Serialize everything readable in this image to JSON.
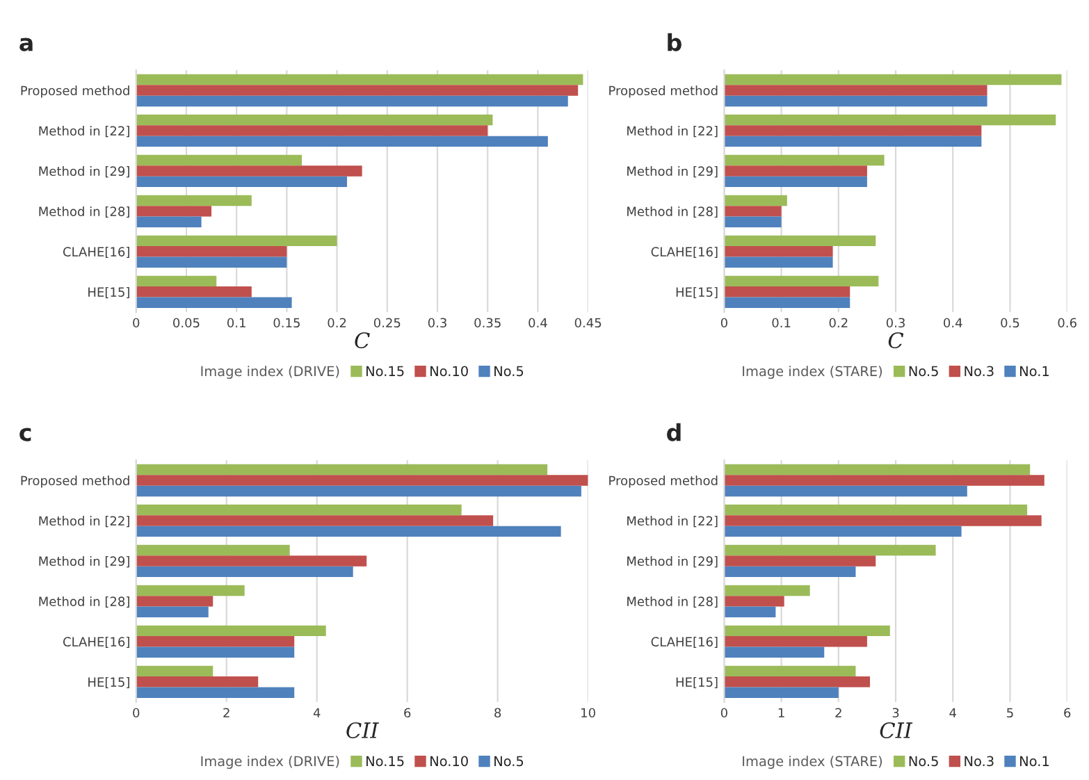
{
  "chart_data": [
    {
      "type": "bar",
      "orientation": "horizontal",
      "title": "a",
      "xlabel": "C",
      "legend_title": "Image index (DRIVE)",
      "legend": "bottom",
      "grid": "x",
      "categories": [
        "Proposed method",
        "Method in [22]",
        "Method in [29]",
        "Method in [28]",
        "CLAHE[16]",
        "HE[15]"
      ],
      "xlim": [
        0,
        0.45
      ],
      "xticks": [
        0,
        0.05,
        0.1,
        0.15,
        0.2,
        0.25,
        0.3,
        0.35,
        0.4,
        0.45
      ],
      "series": [
        {
          "name": "No.15",
          "color": "#9bbb59",
          "values": [
            0.445,
            0.355,
            0.165,
            0.115,
            0.2,
            0.08
          ]
        },
        {
          "name": "No.10",
          "color": "#c0504d",
          "values": [
            0.44,
            0.35,
            0.225,
            0.075,
            0.15,
            0.115
          ]
        },
        {
          "name": "No.5",
          "color": "#4f81bd",
          "values": [
            0.43,
            0.41,
            0.21,
            0.065,
            0.15,
            0.155
          ]
        }
      ]
    },
    {
      "type": "bar",
      "orientation": "horizontal",
      "title": "b",
      "xlabel": "C",
      "legend_title": "Image index (STARE)",
      "legend": "bottom",
      "grid": "x",
      "categories": [
        "Proposed method",
        "Method in [22]",
        "Method in [29]",
        "Method in [28]",
        "CLAHE[16]",
        "HE[15]"
      ],
      "xlim": [
        0,
        0.6
      ],
      "xticks": [
        0,
        0.1,
        0.2,
        0.3,
        0.4,
        0.5,
        0.6
      ],
      "series": [
        {
          "name": "No.5",
          "color": "#9bbb59",
          "values": [
            0.59,
            0.58,
            0.28,
            0.11,
            0.265,
            0.27
          ]
        },
        {
          "name": "No.3",
          "color": "#c0504d",
          "values": [
            0.46,
            0.45,
            0.25,
            0.1,
            0.19,
            0.22
          ]
        },
        {
          "name": "No.1",
          "color": "#4f81bd",
          "values": [
            0.46,
            0.45,
            0.25,
            0.1,
            0.19,
            0.22
          ]
        }
      ]
    },
    {
      "type": "bar",
      "orientation": "horizontal",
      "title": "c",
      "xlabel": "CII",
      "legend_title": "Image index (DRIVE)",
      "legend": "bottom",
      "grid": "x",
      "categories": [
        "Proposed method",
        "Method in [22]",
        "Method in [29]",
        "Method in [28]",
        "CLAHE[16]",
        "HE[15]"
      ],
      "xlim": [
        0,
        10
      ],
      "xticks": [
        0,
        2,
        4,
        6,
        8,
        10
      ],
      "series": [
        {
          "name": "No.15",
          "color": "#9bbb59",
          "values": [
            9.1,
            7.2,
            3.4,
            2.4,
            4.2,
            1.7
          ]
        },
        {
          "name": "No.10",
          "color": "#c0504d",
          "values": [
            10.0,
            7.9,
            5.1,
            1.7,
            3.5,
            2.7
          ]
        },
        {
          "name": "No.5",
          "color": "#4f81bd",
          "values": [
            9.85,
            9.4,
            4.8,
            1.6,
            3.5,
            3.5
          ]
        }
      ]
    },
    {
      "type": "bar",
      "orientation": "horizontal",
      "title": "d",
      "xlabel": "CII",
      "legend_title": "Image index (STARE)",
      "legend": "bottom",
      "grid": "x",
      "categories": [
        "Proposed method",
        "Method in [22]",
        "Method in [29]",
        "Method in [28]",
        "CLAHE[16]",
        "HE[15]"
      ],
      "xlim": [
        0,
        6
      ],
      "xticks": [
        0,
        1,
        2,
        3,
        4,
        5,
        6
      ],
      "series": [
        {
          "name": "No.5",
          "color": "#9bbb59",
          "values": [
            5.35,
            5.3,
            3.7,
            1.5,
            2.9,
            2.3
          ]
        },
        {
          "name": "No.3",
          "color": "#c0504d",
          "values": [
            5.6,
            5.55,
            2.65,
            1.05,
            2.5,
            2.55
          ]
        },
        {
          "name": "No.1",
          "color": "#4f81bd",
          "values": [
            4.25,
            4.15,
            2.3,
            0.9,
            1.75,
            2.0
          ]
        }
      ]
    }
  ]
}
